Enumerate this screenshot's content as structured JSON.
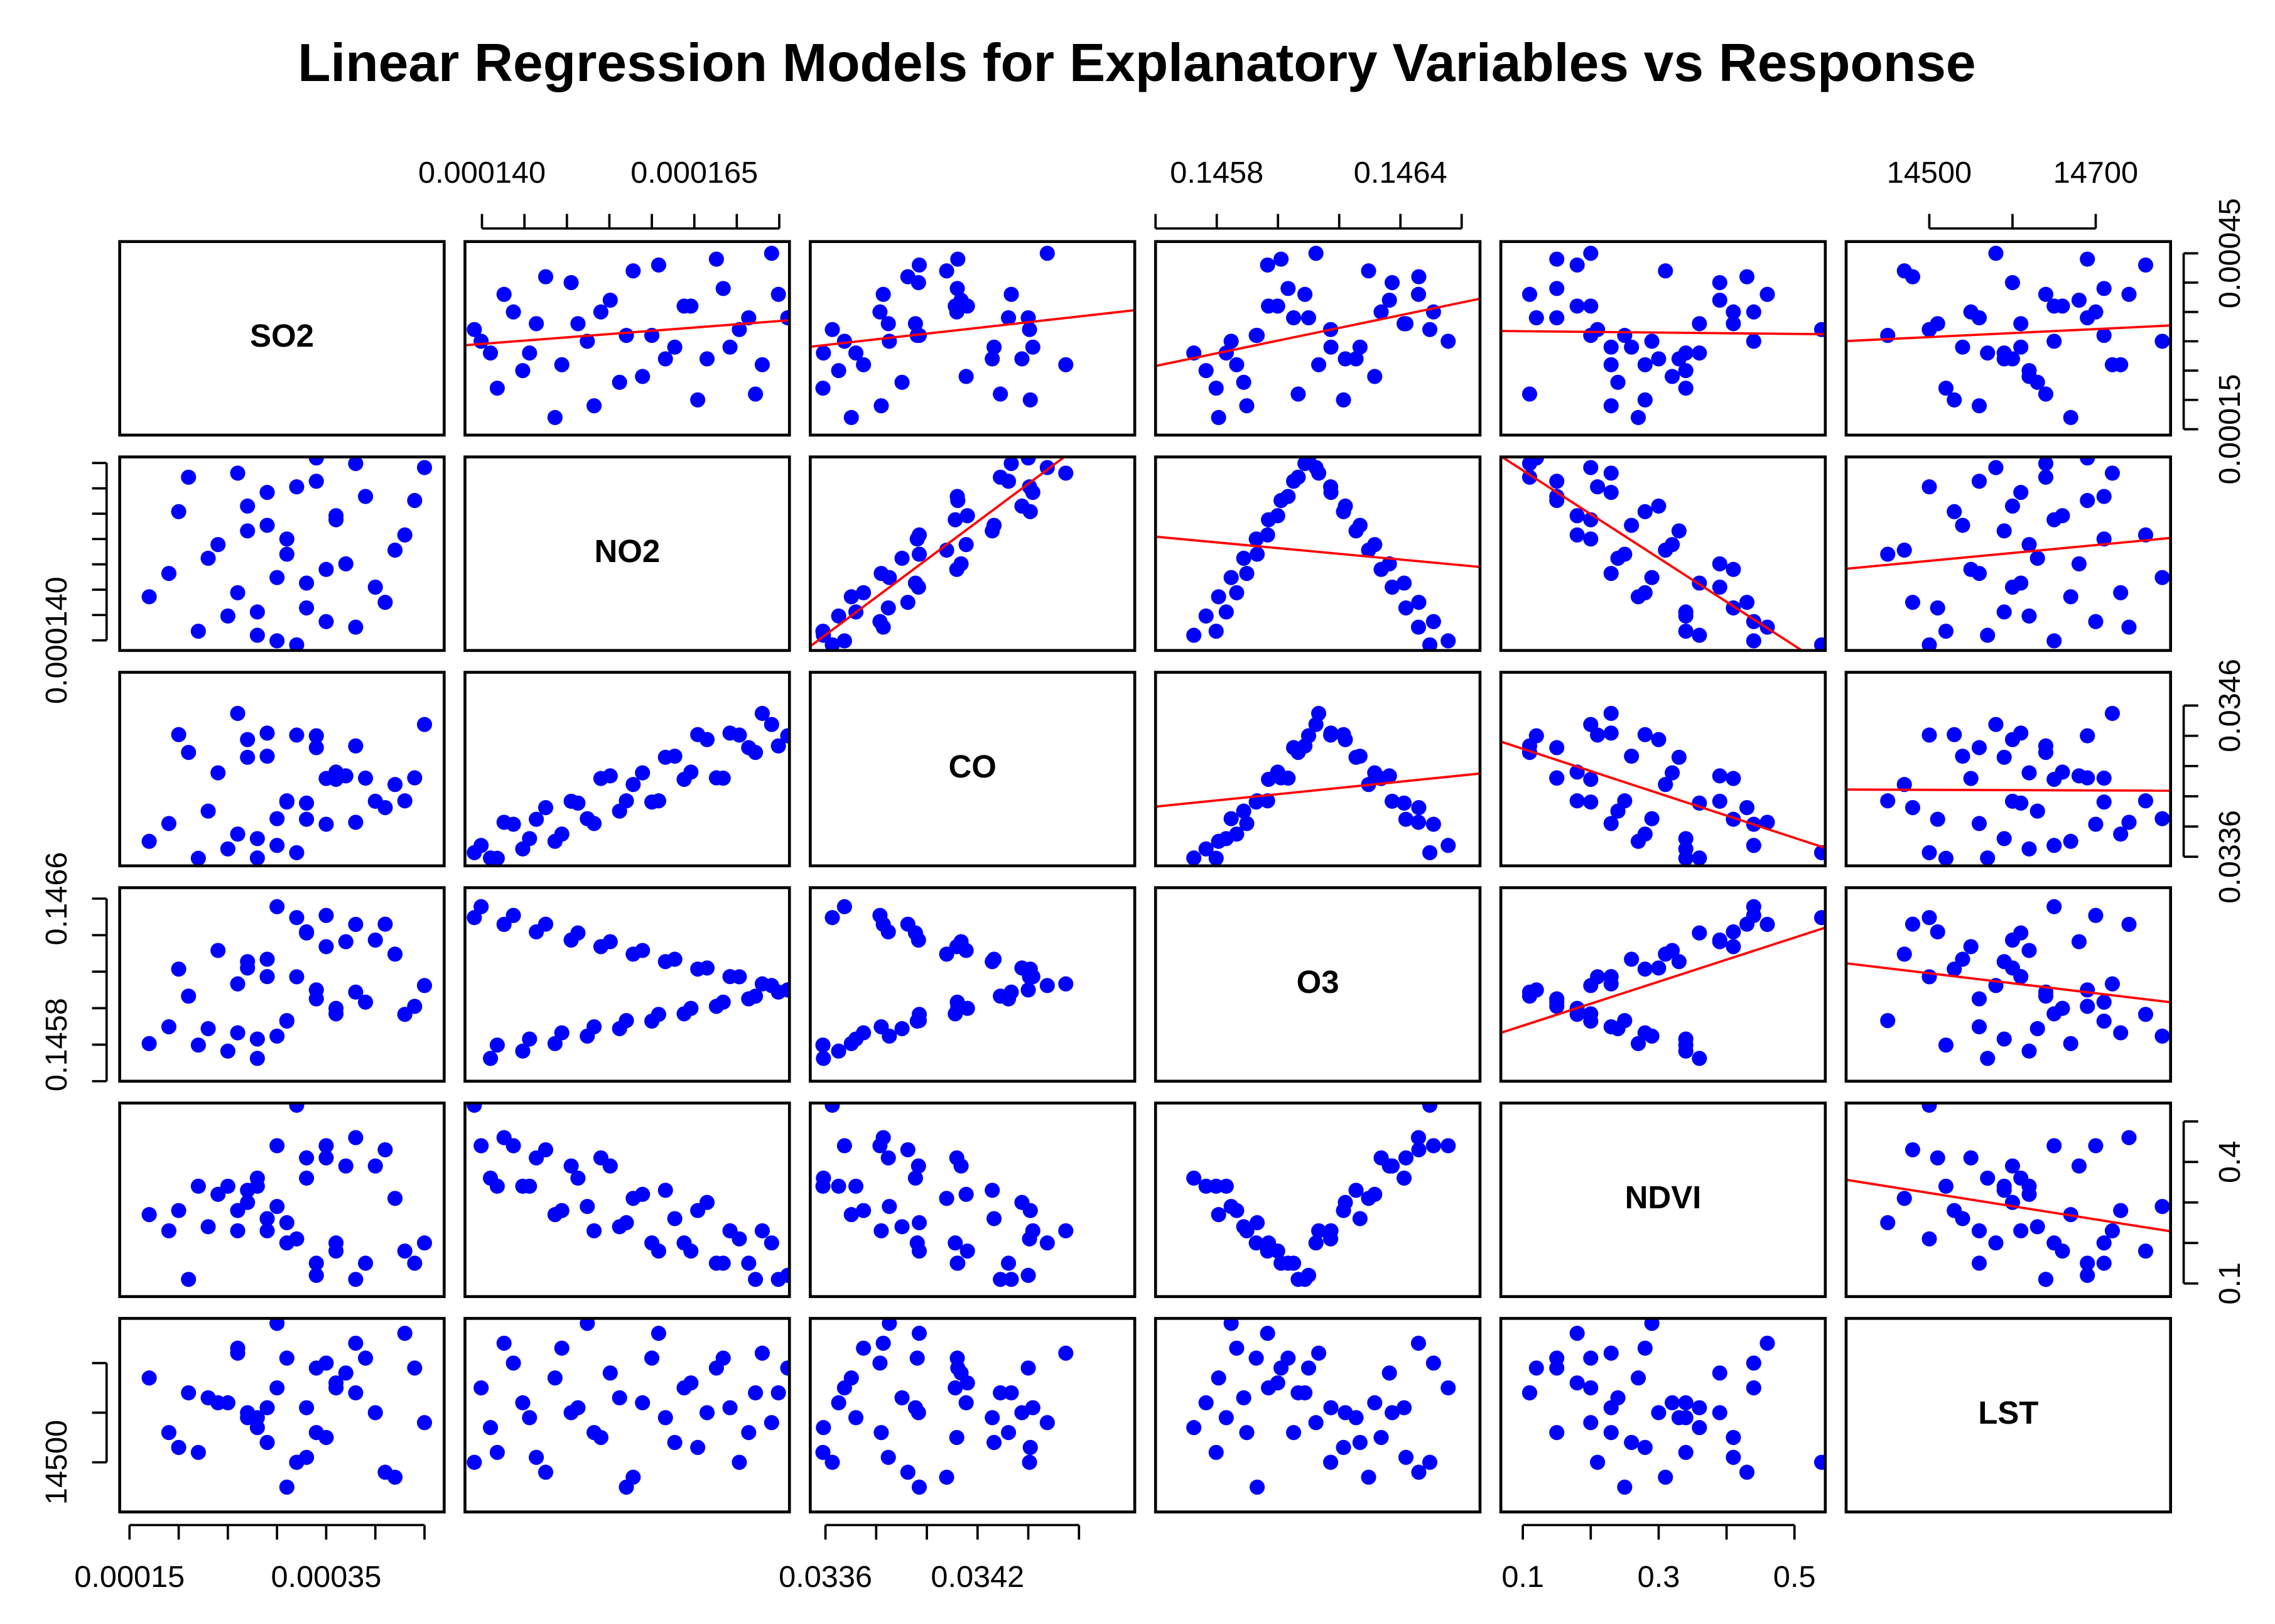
{
  "chart_data": {
    "type": "scatter_matrix",
    "title": "Linear Regression Models for Explanatory Variables vs Response",
    "color": "#0000ff",
    "line_color": "#ff0000",
    "regression_panels": "upper",
    "variables": [
      {
        "name": "SO2",
        "values": [
          0.0003,
          0.00022,
          0.00035,
          0.00028,
          0.00041,
          0.00026,
          0.00033,
          0.00019,
          0.00037,
          0.00031,
          0.00024,
          0.00043,
          0.00029,
          0.00036,
          0.00027,
          0.00039,
          0.00032,
          0.00021,
          0.00045,
          0.00034,
          0.00028,
          0.00038,
          0.00025,
          0.00033,
          0.00017,
          0.0004,
          0.0003,
          0.00035,
          0.00023,
          0.00042,
          0.00031,
          0.00027,
          0.00036,
          0.0002,
          0.00044,
          0.00029,
          0.00034,
          0.00026,
          0.00038,
          0.00032
        ],
        "lim": [
          0.00014,
          0.00047
        ],
        "ticks": [
          0.00015,
          0.0002,
          0.00025,
          0.0003,
          0.00035,
          0.0004,
          0.00045
        ],
        "x_labels": [
          0.00015,
          0.00035
        ],
        "y_labels": [
          0.00015,
          0.00045
        ]
      },
      {
        "name": "NO2",
        "values": [
          0.0001399,
          0.0001418,
          0.0001437,
          0.0001456,
          0.0001475,
          0.0001494,
          0.0001513,
          0.0001532,
          0.0001551,
          0.000157,
          0.0001589,
          0.0001608,
          0.0001627,
          0.0001646,
          0.0001665,
          0.0001684,
          0.0001703,
          0.0001722,
          0.0001741,
          0.000176,
          0.000141,
          0.0001426,
          0.0001448,
          0.0001464,
          0.0001486,
          0.0001505,
          0.0001524,
          0.000154,
          0.0001562,
          0.0001578,
          0.00016,
          0.0001616,
          0.0001638,
          0.0001654,
          0.0001676,
          0.0001692,
          0.0001714,
          0.000173,
          0.0001749,
          0.0001391
        ],
        "lim": [
          0.000138,
          0.0001762
        ],
        "ticks": [
          0.00014,
          0.000145,
          0.00015,
          0.000155,
          0.00016,
          0.000165,
          0.00017,
          0.000175
        ],
        "x_labels": [
          {
            "value": 0.00014,
            "label": "0.000140"
          },
          0.000165
        ],
        "y_labels": [
          {
            "value": 0.00014,
            "label": "0.000140"
          }
        ]
      },
      {
        "name": "CO",
        "values": [
          0.033675,
          0.03359,
          0.033815,
          0.03372,
          0.033925,
          0.03375,
          0.033955,
          0.03382,
          0.034135,
          0.03397,
          0.034155,
          0.03397,
          0.034265,
          0.03416,
          0.034375,
          0.03412,
          0.034405,
          0.03429,
          0.034475,
          0.0344,
          0.033592,
          0.033828,
          0.033652,
          0.033848,
          0.033702,
          0.033967,
          0.033852,
          0.034118,
          0.033902,
          0.034078,
          0.033962,
          0.034258,
          0.034112,
          0.034408,
          0.034122,
          0.034418,
          0.034322,
          0.034548,
          0.034333,
          0.033627
        ],
        "lim": [
          0.03354,
          0.03482
        ],
        "ticks": [
          0.0336,
          0.0338,
          0.034,
          0.0342,
          0.0344,
          0.0346
        ],
        "x_labels": [
          0.0336,
          0.0342
        ],
        "y_labels": [
          0.0336,
          0.0346
        ]
      },
      {
        "name": "O3",
        "values": [
          0.146556,
          0.145798,
          0.146508,
          0.145831,
          0.14646,
          0.145865,
          0.146412,
          0.145898,
          0.146364,
          0.145932,
          0.146316,
          0.145966,
          0.146268,
          0.145999,
          0.14622,
          0.146033,
          0.146172,
          0.146066,
          0.146124,
          0.1461,
          0.145725,
          0.146459,
          0.145765,
          0.146418,
          0.145806,
          0.146373,
          0.145847,
          0.146337,
          0.145888,
          0.146296,
          0.145929,
          0.146255,
          0.145969,
          0.146214,
          0.14601,
          0.146173,
          0.146051,
          0.146133,
          0.146088,
          0.146496
        ],
        "lim": [
          0.1456,
          0.14666
        ],
        "ticks": [
          0.1456,
          0.1458,
          0.146,
          0.1462,
          0.1464,
          0.1466
        ],
        "x_labels": [
          0.1458,
          0.1464
        ],
        "y_labels": [
          0.1458,
          0.1466
        ]
      },
      {
        "name": "NDVI",
        "values": [
          0.44,
          0.34,
          0.44,
          0.34,
          0.43,
          0.28,
          0.36,
          0.23,
          0.39,
          0.25,
          0.32,
          0.18,
          0.26,
          0.18,
          0.3,
          0.15,
          0.21,
          0.11,
          0.2,
          0.12,
          0.36,
          0.46,
          0.34,
          0.41,
          0.27,
          0.39,
          0.29,
          0.41,
          0.24,
          0.31,
          0.2,
          0.33,
          0.2,
          0.28,
          0.15,
          0.23,
          0.15,
          0.23,
          0.11,
          0.54
        ],
        "lim": [
          0.0676,
          0.5454
        ],
        "ticks": [
          0.1,
          0.2,
          0.3,
          0.4,
          0.5
        ],
        "x_labels": [
          0.1,
          0.3,
          0.5
        ],
        "y_labels": [
          0.1,
          0.4
        ]
      },
      {
        "name": "LST",
        "values": [
          14650,
          14520,
          14700,
          14590,
          14480,
          14730,
          14610,
          14560,
          14680,
          14450,
          14620,
          14760,
          14540,
          14660,
          14600,
          14710,
          14500,
          14640,
          14580,
          14690,
          14570,
          14740,
          14620,
          14510,
          14670,
          14600,
          14780,
          14550,
          14630,
          14470,
          14710,
          14590,
          14650,
          14530,
          14690,
          14610,
          14560,
          14720,
          14640,
          14500
        ],
        "lim": [
          14400,
          14790
        ],
        "ticks": [
          14500,
          14600,
          14700
        ],
        "x_labels": [
          14500,
          14700
        ],
        "y_labels": [
          14500
        ]
      }
    ]
  }
}
